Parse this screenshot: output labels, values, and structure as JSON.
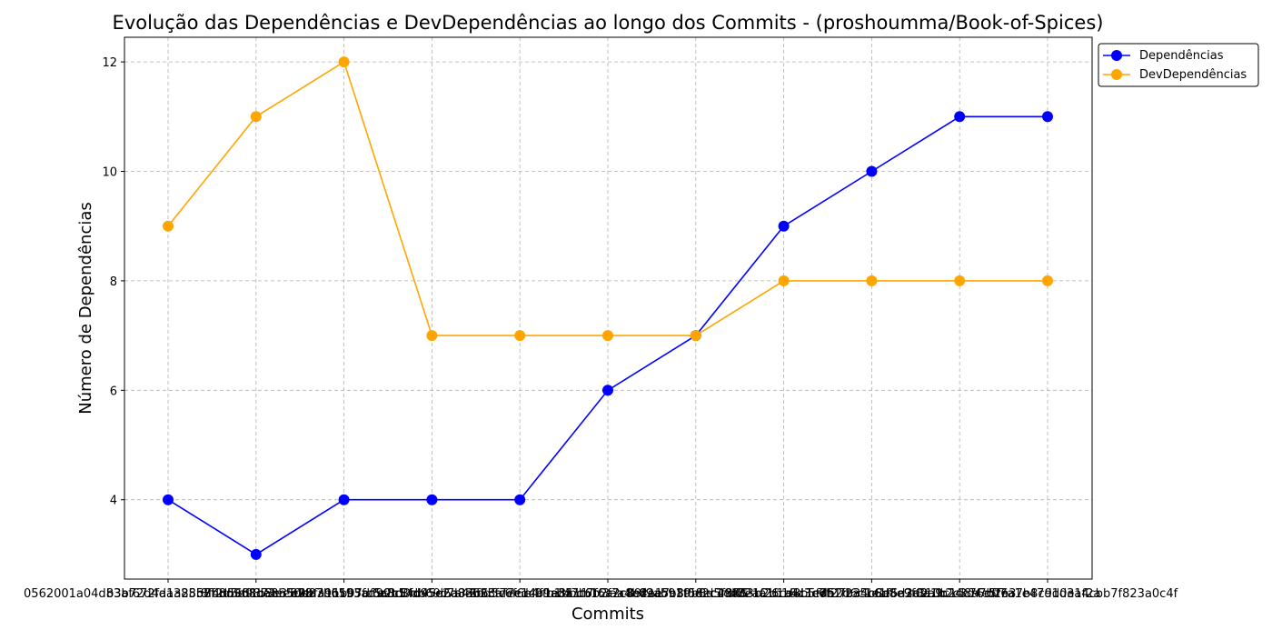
{
  "chart_data": {
    "type": "line",
    "title": "Evolução das Dependências e DevDependências ao longo dos Commits - (proshoumma/Book-of-Spices)",
    "xlabel": "Commits",
    "ylabel": "Número de Dependências",
    "categories": [
      "0562001a04d83af672fa1a2858f2d5d9873ee878",
      "b3b72d4da385b7b8d968da8b50b87b6593ad99b1",
      "8f4d56d1b8e35dea39b1b5fc6a8c3fd95e2d8e62",
      "e9bfa11b97df5c3d0db69c7a46cd5c6f6e4f9a35",
      "a2c54d45d6a33b6cf7eed4b1e8a1f6b2f7c8e2a1",
      "2f63af7c1c9fb1bbcb1f3aa4b82a5b8f58ec49d6",
      "c47b7f6a2c89f9ab91f0e2c1c48e1f26cd8b5f7e",
      "4ee7c39b8d5f8f72aa1b16d3e6f27b34b8e6d2a9",
      "d6f3b2b1a4c1ed52d6c1e1f5a3d2a9c1d8a7b2e3",
      "7b1f2a5c6d8e9f0a1b2c3d4e5f6a7b8c9d0e1f2a",
      "310b24c76dff7a1e47d1d3a4cbb7f823a0c4f"
    ],
    "series": [
      {
        "name": "Dependências",
        "color": "#0000ff",
        "values": [
          4,
          3,
          4,
          4,
          4,
          6,
          7,
          9,
          10,
          11,
          11
        ]
      },
      {
        "name": "DevDependências",
        "color": "#ffa500",
        "values": [
          9,
          11,
          12,
          7,
          7,
          7,
          7,
          8,
          8,
          8,
          8
        ]
      }
    ],
    "yticks": [
      4,
      6,
      8,
      10,
      12
    ],
    "ylim": [
      2.55,
      12.45
    ],
    "grid": true,
    "legend_position": "outside-top-right"
  }
}
